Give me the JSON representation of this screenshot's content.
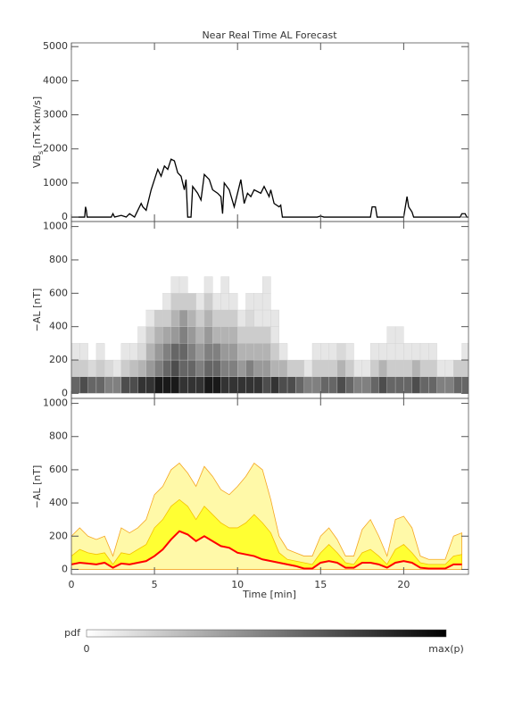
{
  "chart_data": [
    {
      "type": "line",
      "title": "Near Real Time AL Forecast",
      "y_label_main": "VB",
      "y_label_sub": "s",
      "y_label_unit": "[nT×km/s]",
      "xlim": [
        0,
        23.9
      ],
      "xticks": [
        0,
        5,
        10,
        15,
        20
      ],
      "ylim": [
        -130,
        5110
      ],
      "yticks": [
        0,
        1000,
        2000,
        3000,
        4000,
        5000
      ],
      "color": "#000000",
      "x": [
        0,
        0.8,
        0.85,
        0.9,
        0.95,
        1.0,
        2.4,
        2.5,
        2.6,
        3.0,
        3.3,
        3.5,
        3.8,
        4.0,
        4.2,
        4.3,
        4.5,
        4.8,
        5.0,
        5.2,
        5.4,
        5.6,
        5.8,
        6.0,
        6.2,
        6.4,
        6.6,
        6.8,
        6.9,
        7.0,
        7.2,
        7.3,
        7.6,
        7.8,
        8.0,
        8.3,
        8.5,
        8.8,
        9.0,
        9.1,
        9.2,
        9.5,
        9.8,
        10.0,
        10.2,
        10.4,
        10.6,
        10.8,
        11.0,
        11.4,
        11.6,
        11.9,
        12.0,
        12.2,
        12.5,
        12.6,
        12.7,
        14.8,
        15.0,
        15.2,
        18.0,
        18.1,
        18.3,
        18.4,
        20.0,
        20.2,
        20.3,
        20.5,
        20.6,
        23.4,
        23.5,
        23.7,
        23.8,
        23.9
      ],
      "values": [
        0,
        0,
        300,
        200,
        0,
        0,
        0,
        100,
        0,
        50,
        0,
        100,
        0,
        200,
        400,
        300,
        200,
        800,
        1100,
        1400,
        1200,
        1500,
        1400,
        1700,
        1650,
        1300,
        1200,
        800,
        1100,
        0,
        0,
        900,
        700,
        500,
        1250,
        1100,
        800,
        700,
        600,
        100,
        1000,
        800,
        300,
        700,
        1100,
        400,
        700,
        600,
        800,
        700,
        900,
        600,
        800,
        400,
        300,
        350,
        0,
        0,
        30,
        0,
        0,
        300,
        300,
        0,
        0,
        600,
        300,
        150,
        0,
        0,
        100,
        100,
        0,
        0
      ]
    },
    {
      "type": "heatmap",
      "y_label": "−AL [nT]",
      "xlim": [
        0,
        23.9
      ],
      "xticks": [
        0,
        5,
        10,
        15,
        20
      ],
      "ylim": [
        -30,
        1030
      ],
      "yticks": [
        0,
        200,
        400,
        600,
        800,
        1000
      ],
      "xbins": [
        0,
        0.5,
        1,
        1.5,
        2,
        2.5,
        3,
        3.5,
        4,
        4.5,
        5,
        5.5,
        6,
        6.5,
        7,
        7.5,
        8,
        8.5,
        9,
        9.5,
        10,
        10.5,
        11,
        11.5,
        12,
        12.5,
        13,
        13.5,
        14,
        14.5,
        15,
        15.5,
        16,
        16.5,
        17,
        17.5,
        18,
        18.5,
        19,
        19.5,
        20,
        20.5,
        21,
        21.5,
        22,
        22.5,
        23,
        23.5,
        24
      ],
      "ybins": [
        0,
        100,
        200,
        300,
        400,
        500,
        600,
        700
      ],
      "values": [
        [
          0.6,
          0.2,
          0.1
        ],
        [
          0.7,
          0.2,
          0.1
        ],
        [
          0.6,
          0.15
        ],
        [
          0.6,
          0.2,
          0.1
        ],
        [
          0.5,
          0.15
        ],
        [
          0.5,
          0.1
        ],
        [
          0.7,
          0.2,
          0.1
        ],
        [
          0.7,
          0.25,
          0.1
        ],
        [
          0.8,
          0.3,
          0.15,
          0.1
        ],
        [
          0.8,
          0.4,
          0.3,
          0.2,
          0.1
        ],
        [
          0.9,
          0.5,
          0.4,
          0.3,
          0.2
        ],
        [
          0.9,
          0.6,
          0.5,
          0.35,
          0.2,
          0.1
        ],
        [
          0.9,
          0.7,
          0.6,
          0.4,
          0.3,
          0.2,
          0.1
        ],
        [
          0.8,
          0.6,
          0.6,
          0.5,
          0.4,
          0.2,
          0.1
        ],
        [
          0.8,
          0.6,
          0.5,
          0.4,
          0.3,
          0.2
        ],
        [
          0.8,
          0.5,
          0.4,
          0.3,
          0.2,
          0.1
        ],
        [
          0.9,
          0.6,
          0.5,
          0.4,
          0.3,
          0.2,
          0.1
        ],
        [
          0.9,
          0.6,
          0.5,
          0.3,
          0.2,
          0.1
        ],
        [
          0.8,
          0.5,
          0.4,
          0.3,
          0.2,
          0.1,
          0.1
        ],
        [
          0.8,
          0.5,
          0.4,
          0.3,
          0.2,
          0.1
        ],
        [
          0.8,
          0.4,
          0.3,
          0.2,
          0.1
        ],
        [
          0.8,
          0.5,
          0.3,
          0.2,
          0.15,
          0.1
        ],
        [
          0.8,
          0.4,
          0.3,
          0.2,
          0.1,
          0.1
        ],
        [
          0.7,
          0.4,
          0.3,
          0.2,
          0.1,
          0.1,
          0.1
        ],
        [
          0.8,
          0.3,
          0.2,
          0.1,
          0.1
        ],
        [
          0.7,
          0.3,
          0.1
        ],
        [
          0.7,
          0.2
        ],
        [
          0.6,
          0.2
        ],
        [
          0.5,
          0.1
        ],
        [
          0.5,
          0.2,
          0.1
        ],
        [
          0.6,
          0.2,
          0.1
        ],
        [
          0.6,
          0.2,
          0.1
        ],
        [
          0.7,
          0.3,
          0.15
        ],
        [
          0.6,
          0.2,
          0.1
        ],
        [
          0.5,
          0.1
        ],
        [
          0.5,
          0.1
        ],
        [
          0.6,
          0.2,
          0.1
        ],
        [
          0.7,
          0.3,
          0.1
        ],
        [
          0.6,
          0.2,
          0.1,
          0.1
        ],
        [
          0.6,
          0.2,
          0.1,
          0.1
        ],
        [
          0.6,
          0.2,
          0.1
        ],
        [
          0.7,
          0.3,
          0.1
        ],
        [
          0.6,
          0.2,
          0.1
        ],
        [
          0.6,
          0.2,
          0.1
        ],
        [
          0.5,
          0.1
        ],
        [
          0.5,
          0.1
        ],
        [
          0.6,
          0.2
        ],
        [
          0.6,
          0.2,
          0.1
        ]
      ]
    },
    {
      "type": "band",
      "y_label": "−AL [nT]",
      "x_label": "Time [min]",
      "xlim": [
        0,
        23.9
      ],
      "xticks": [
        0,
        5,
        10,
        15,
        20
      ],
      "ylim": [
        -30,
        1030
      ],
      "yticks": [
        0,
        200,
        400,
        600,
        800,
        1000
      ],
      "x": [
        0,
        0.5,
        1,
        1.5,
        2,
        2.5,
        3,
        3.5,
        4,
        4.5,
        5,
        5.5,
        6,
        6.5,
        7,
        7.5,
        8,
        8.5,
        9,
        9.5,
        10,
        10.5,
        11,
        11.5,
        12,
        12.5,
        13,
        13.5,
        14,
        14.5,
        15,
        15.5,
        16,
        16.5,
        17,
        17.5,
        18,
        18.5,
        19,
        19.5,
        20,
        20.5,
        21,
        21.5,
        22,
        22.5,
        23,
        23.5
      ],
      "series": [
        {
          "color": "#fff9a8",
          "stroke": "#f5a623",
          "values": [
            200,
            250,
            200,
            180,
            200,
            80,
            250,
            220,
            250,
            300,
            450,
            500,
            600,
            640,
            580,
            500,
            620,
            560,
            480,
            450,
            500,
            560,
            640,
            600,
            420,
            200,
            120,
            100,
            80,
            80,
            200,
            250,
            180,
            80,
            80,
            240,
            300,
            200,
            80,
            300,
            320,
            250,
            80,
            60,
            60,
            60,
            200,
            220
          ]
        },
        {
          "color": "#ffff33",
          "stroke": "#f5c000",
          "values": [
            80,
            120,
            100,
            90,
            100,
            30,
            100,
            90,
            120,
            150,
            250,
            300,
            380,
            420,
            380,
            300,
            380,
            330,
            280,
            250,
            250,
            280,
            330,
            280,
            220,
            100,
            60,
            50,
            40,
            30,
            100,
            150,
            100,
            40,
            30,
            100,
            120,
            80,
            30,
            120,
            150,
            100,
            40,
            30,
            30,
            30,
            80,
            90
          ]
        },
        {
          "color": "#ff0000",
          "values": [
            30,
            40,
            35,
            30,
            40,
            10,
            35,
            30,
            40,
            50,
            80,
            120,
            180,
            230,
            210,
            170,
            200,
            170,
            140,
            130,
            100,
            90,
            80,
            60,
            50,
            40,
            30,
            20,
            5,
            5,
            40,
            50,
            40,
            10,
            10,
            40,
            40,
            30,
            10,
            40,
            50,
            40,
            10,
            5,
            5,
            5,
            30,
            30
          ]
        }
      ]
    }
  ],
  "colorbar": {
    "label": "pdf",
    "min_label": "0",
    "max_label": "max(p)"
  }
}
